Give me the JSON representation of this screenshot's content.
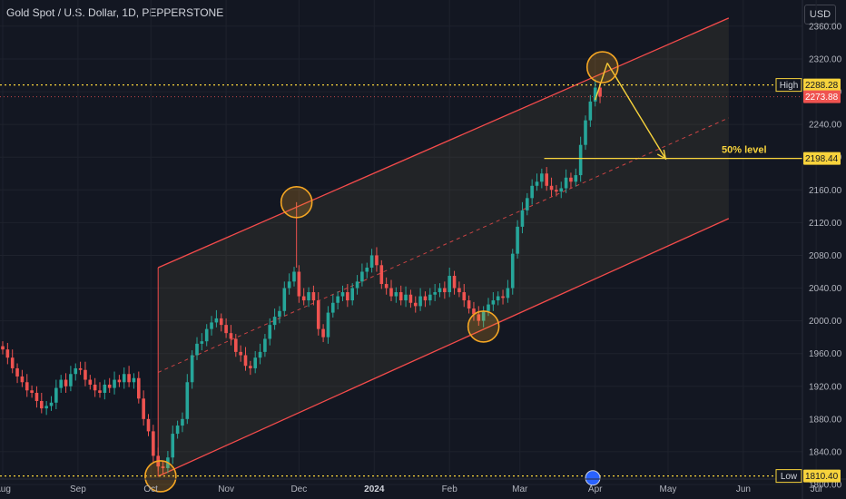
{
  "header": {
    "symbol_title": "Gold Spot / U.S. Dollar, 1D, PEPPERSTONE",
    "currency_button": "USD"
  },
  "chart_data": {
    "type": "candlestick",
    "y_ticks": [
      1800,
      1840,
      1880,
      1920,
      1960,
      2000,
      2040,
      2080,
      2120,
      2160,
      2200,
      2240,
      2280,
      2320,
      2360
    ],
    "ylim": [
      1795,
      2375
    ],
    "x_ticks": [
      {
        "label": "Aug",
        "day": 0,
        "bold": false
      },
      {
        "label": "Sep",
        "day": 31,
        "bold": false
      },
      {
        "label": "Oct",
        "day": 61,
        "bold": false
      },
      {
        "label": "Nov",
        "day": 92,
        "bold": false
      },
      {
        "label": "Dec",
        "day": 122,
        "bold": false
      },
      {
        "label": "2024",
        "day": 153,
        "bold": true
      },
      {
        "label": "Feb",
        "day": 184,
        "bold": false
      },
      {
        "label": "Mar",
        "day": 213,
        "bold": false
      },
      {
        "label": "Apr",
        "day": 244,
        "bold": false
      },
      {
        "label": "May",
        "day": 274,
        "bold": false
      },
      {
        "label": "Jun",
        "day": 305,
        "bold": false
      },
      {
        "label": "Jul",
        "day": 335,
        "bold": false
      }
    ],
    "closes": [
      {
        "day": 0,
        "value": 1965
      },
      {
        "day": 2,
        "value": 1955
      },
      {
        "day": 4,
        "value": 1942
      },
      {
        "day": 6,
        "value": 1932
      },
      {
        "day": 8,
        "value": 1925
      },
      {
        "day": 10,
        "value": 1915
      },
      {
        "day": 12,
        "value": 1912
      },
      {
        "day": 14,
        "value": 1902
      },
      {
        "day": 16,
        "value": 1893
      },
      {
        "day": 18,
        "value": 1896
      },
      {
        "day": 20,
        "value": 1900
      },
      {
        "day": 22,
        "value": 1918
      },
      {
        "day": 24,
        "value": 1928
      },
      {
        "day": 26,
        "value": 1920
      },
      {
        "day": 28,
        "value": 1935
      },
      {
        "day": 30,
        "value": 1942
      },
      {
        "day": 32,
        "value": 1940
      },
      {
        "day": 34,
        "value": 1928
      },
      {
        "day": 36,
        "value": 1922
      },
      {
        "day": 38,
        "value": 1915
      },
      {
        "day": 40,
        "value": 1912
      },
      {
        "day": 42,
        "value": 1922
      },
      {
        "day": 44,
        "value": 1918
      },
      {
        "day": 46,
        "value": 1928
      },
      {
        "day": 48,
        "value": 1925
      },
      {
        "day": 50,
        "value": 1935
      },
      {
        "day": 52,
        "value": 1925
      },
      {
        "day": 54,
        "value": 1930
      },
      {
        "day": 56,
        "value": 1905
      },
      {
        "day": 58,
        "value": 1880
      },
      {
        "day": 60,
        "value": 1865
      },
      {
        "day": 62,
        "value": 1835
      },
      {
        "day": 64,
        "value": 1822
      },
      {
        "day": 66,
        "value": 1820
      },
      {
        "day": 68,
        "value": 1833
      },
      {
        "day": 70,
        "value": 1862
      },
      {
        "day": 72,
        "value": 1872
      },
      {
        "day": 74,
        "value": 1880
      },
      {
        "day": 76,
        "value": 1925
      },
      {
        "day": 78,
        "value": 1958
      },
      {
        "day": 80,
        "value": 1972
      },
      {
        "day": 82,
        "value": 1975
      },
      {
        "day": 84,
        "value": 1990
      },
      {
        "day": 86,
        "value": 1998
      },
      {
        "day": 88,
        "value": 2003
      },
      {
        "day": 90,
        "value": 1995
      },
      {
        "day": 92,
        "value": 1985
      },
      {
        "day": 94,
        "value": 1978
      },
      {
        "day": 96,
        "value": 1962
      },
      {
        "day": 98,
        "value": 1958
      },
      {
        "day": 100,
        "value": 1945
      },
      {
        "day": 102,
        "value": 1942
      },
      {
        "day": 104,
        "value": 1955
      },
      {
        "day": 106,
        "value": 1962
      },
      {
        "day": 108,
        "value": 1978
      },
      {
        "day": 110,
        "value": 1995
      },
      {
        "day": 112,
        "value": 2005
      },
      {
        "day": 114,
        "value": 2012
      },
      {
        "day": 116,
        "value": 2040
      },
      {
        "day": 118,
        "value": 2048
      },
      {
        "day": 120,
        "value": 2060
      },
      {
        "day": 122,
        "value": 2030
      },
      {
        "day": 124,
        "value": 2025
      },
      {
        "day": 126,
        "value": 2035
      },
      {
        "day": 128,
        "value": 2025
      },
      {
        "day": 130,
        "value": 1990
      },
      {
        "day": 132,
        "value": 1980
      },
      {
        "day": 134,
        "value": 2010
      },
      {
        "day": 136,
        "value": 2022
      },
      {
        "day": 138,
        "value": 2030
      },
      {
        "day": 140,
        "value": 2035
      },
      {
        "day": 142,
        "value": 2025
      },
      {
        "day": 144,
        "value": 2040
      },
      {
        "day": 146,
        "value": 2048
      },
      {
        "day": 148,
        "value": 2060
      },
      {
        "day": 150,
        "value": 2065
      },
      {
        "day": 152,
        "value": 2080
      },
      {
        "day": 154,
        "value": 2068
      },
      {
        "day": 156,
        "value": 2045
      },
      {
        "day": 158,
        "value": 2040
      },
      {
        "day": 160,
        "value": 2030
      },
      {
        "day": 162,
        "value": 2035
      },
      {
        "day": 164,
        "value": 2025
      },
      {
        "day": 166,
        "value": 2032
      },
      {
        "day": 168,
        "value": 2022
      },
      {
        "day": 170,
        "value": 2018
      },
      {
        "day": 172,
        "value": 2030
      },
      {
        "day": 174,
        "value": 2025
      },
      {
        "day": 176,
        "value": 2032
      },
      {
        "day": 178,
        "value": 2035
      },
      {
        "day": 180,
        "value": 2040
      },
      {
        "day": 182,
        "value": 2035
      },
      {
        "day": 184,
        "value": 2055
      },
      {
        "day": 186,
        "value": 2040
      },
      {
        "day": 188,
        "value": 2035
      },
      {
        "day": 190,
        "value": 2025
      },
      {
        "day": 192,
        "value": 2015
      },
      {
        "day": 194,
        "value": 2008
      },
      {
        "day": 196,
        "value": 2000
      },
      {
        "day": 198,
        "value": 2012
      },
      {
        "day": 200,
        "value": 2020
      },
      {
        "day": 202,
        "value": 2025
      },
      {
        "day": 204,
        "value": 2030
      },
      {
        "day": 206,
        "value": 2028
      },
      {
        "day": 208,
        "value": 2040
      },
      {
        "day": 210,
        "value": 2082
      },
      {
        "day": 212,
        "value": 2115
      },
      {
        "day": 214,
        "value": 2135
      },
      {
        "day": 216,
        "value": 2150
      },
      {
        "day": 218,
        "value": 2165
      },
      {
        "day": 220,
        "value": 2170
      },
      {
        "day": 222,
        "value": 2180
      },
      {
        "day": 224,
        "value": 2165
      },
      {
        "day": 226,
        "value": 2160
      },
      {
        "day": 228,
        "value": 2158
      },
      {
        "day": 230,
        "value": 2162
      },
      {
        "day": 232,
        "value": 2175
      },
      {
        "day": 234,
        "value": 2170
      },
      {
        "day": 236,
        "value": 2178
      },
      {
        "day": 238,
        "value": 2215
      },
      {
        "day": 240,
        "value": 2245
      },
      {
        "day": 242,
        "value": 2268
      },
      {
        "day": 244,
        "value": 2285
      },
      {
        "day": 246,
        "value": 2274
      }
    ],
    "high": {
      "label": "High",
      "value": "2288.28"
    },
    "last_price": {
      "value": "2273.88"
    },
    "low": {
      "label": "Low",
      "value": "1810.40"
    },
    "level_50": {
      "label": "50% level",
      "value": "2198.44"
    },
    "channel": {
      "upper": [
        {
          "day": 64,
          "value": 2065
        },
        {
          "day": 299,
          "value": 2370
        }
      ],
      "lower": [
        {
          "day": 64,
          "value": 1810
        },
        {
          "day": 299,
          "value": 2125
        }
      ],
      "mid": [
        {
          "day": 64,
          "value": 1937
        },
        {
          "day": 299,
          "value": 2248
        }
      ]
    },
    "touch_circles": [
      {
        "day": 65,
        "value": 1810
      },
      {
        "day": 121,
        "value": 2145
      },
      {
        "day": 198,
        "value": 1993
      },
      {
        "day": 247,
        "value": 2310
      }
    ],
    "projection": [
      {
        "day": 249,
        "value": 2315
      },
      {
        "day": 273,
        "value": 2198
      }
    ],
    "colors": {
      "up": "#26a69a",
      "down": "#ef5350",
      "channel": "#f44b4b",
      "circle": "#f5a623",
      "annotation": "#f7d33c",
      "bg": "#131722"
    }
  }
}
